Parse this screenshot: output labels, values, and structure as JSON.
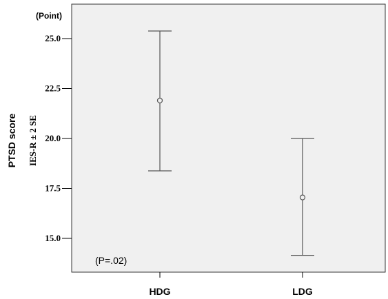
{
  "chart_data": {
    "type": "errorbar",
    "unit_label": "(Point)",
    "ylabel": "PTSD score",
    "ylabel_sub": "IES-R ± 2 SE",
    "categories": [
      "HDG",
      "LDG"
    ],
    "mean": [
      21.9,
      17.05
    ],
    "lower": [
      18.38,
      14.15
    ],
    "upper": [
      25.38,
      20.0
    ],
    "ylim": [
      13.6,
      27.9
    ],
    "yticks": [
      15.0,
      17.5,
      20.0,
      22.5,
      25.0
    ],
    "ytick_labels": [
      "15.0",
      "17.5",
      "20.0",
      "22.5",
      "25.0"
    ],
    "annotation": "(P=.02)",
    "grid": false,
    "colors": {
      "plot_bg": "#f0f0f0",
      "line": "#555555",
      "frame": "#333333"
    }
  }
}
